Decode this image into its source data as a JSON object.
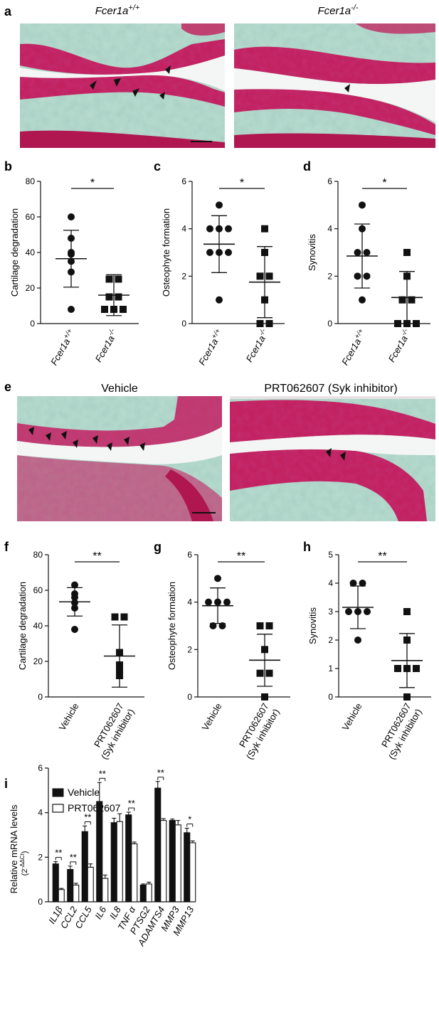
{
  "panels": {
    "a": {
      "letter": "a",
      "left_title_name": "Fcer1a",
      "left_title_sup": "+/+",
      "right_title_name": "Fcer1a",
      "right_title_sup": "-/-"
    },
    "e": {
      "letter": "e",
      "left_title": "Vehicle",
      "right_title": "PRT062607 (Syk inhibitor)"
    }
  },
  "colors": {
    "safranin": "#c21d5a",
    "background_tissue": "#b8dccf",
    "bar_vehicle": "#111111",
    "bar_prt": "#ffffff"
  },
  "chart_data": [
    {
      "id": "b",
      "letter": "b",
      "type": "scatter",
      "categories": [
        {
          "name": "Fcer1a",
          "sup": "+/+"
        },
        {
          "name": "Fcer1a",
          "sup": "-/-"
        }
      ],
      "ylabel": "Cartilage degradation",
      "ylim": [
        0,
        80
      ],
      "yticks": [
        0,
        20,
        40,
        60,
        80
      ],
      "series": [
        {
          "marker": "circle",
          "values": [
            60,
            48,
            40,
            39,
            35,
            29,
            8
          ],
          "mean": 36.5,
          "sd": 16
        },
        {
          "marker": "square",
          "values": [
            25,
            25,
            15,
            15,
            8,
            8,
            8
          ],
          "mean": 16,
          "sd": 11.5
        }
      ],
      "significance": "*"
    },
    {
      "id": "c",
      "letter": "c",
      "type": "scatter",
      "categories": [
        {
          "name": "Fcer1a",
          "sup": "+/+"
        },
        {
          "name": "Fcer1a",
          "sup": "-/-"
        }
      ],
      "ylabel": "Osteophyte formation",
      "ylim": [
        0,
        6
      ],
      "yticks": [
        0,
        2,
        4,
        6
      ],
      "series": [
        {
          "marker": "circle",
          "values": [
            5,
            4,
            4,
            4,
            3,
            3,
            3,
            1
          ],
          "mean": 3.35,
          "sd": 1.2
        },
        {
          "marker": "square",
          "values": [
            4,
            3,
            2,
            2,
            1,
            0,
            0
          ],
          "mean": 1.75,
          "sd": 1.5
        }
      ],
      "significance": "*"
    },
    {
      "id": "d",
      "letter": "d",
      "type": "scatter",
      "categories": [
        {
          "name": "Fcer1a",
          "sup": "+/+"
        },
        {
          "name": "Fcer1a",
          "sup": "-/-"
        }
      ],
      "ylabel": "Synovitis",
      "ylim": [
        0,
        6
      ],
      "yticks": [
        0,
        2,
        4,
        6
      ],
      "series": [
        {
          "marker": "circle",
          "values": [
            5,
            4,
            3,
            3,
            2,
            2,
            1
          ],
          "mean": 2.85,
          "sd": 1.35
        },
        {
          "marker": "square",
          "values": [
            3,
            2,
            1,
            1,
            0,
            0,
            0
          ],
          "mean": 1.1,
          "sd": 1.1
        }
      ],
      "significance": "*"
    },
    {
      "id": "f",
      "letter": "f",
      "type": "scatter",
      "categories": [
        {
          "name": "Vehicle"
        },
        {
          "name": "PRT062607",
          "line2": "(Syk inhibitor)"
        }
      ],
      "ylabel": "Cartilage degradation",
      "ylim": [
        0,
        80
      ],
      "yticks": [
        0,
        20,
        40,
        60,
        80
      ],
      "series": [
        {
          "marker": "circle",
          "values": [
            63,
            58,
            56,
            53,
            50,
            38
          ],
          "mean": 53.5,
          "sd": 8
        },
        {
          "marker": "square",
          "values": [
            45,
            45,
            25,
            18,
            15,
            12
          ],
          "mean": 23,
          "sd": 17.5
        }
      ],
      "significance": "**"
    },
    {
      "id": "g",
      "letter": "g",
      "type": "scatter",
      "categories": [
        {
          "name": "Vehicle"
        },
        {
          "name": "PRT062607",
          "line2": "(Syk inhibitor)"
        }
      ],
      "ylabel": "Osteophyte formation",
      "ylim": [
        0,
        6
      ],
      "yticks": [
        0,
        2,
        4,
        6
      ],
      "series": [
        {
          "marker": "circle",
          "values": [
            5,
            4,
            4,
            4,
            3,
            3
          ],
          "mean": 3.85,
          "sd": 0.75
        },
        {
          "marker": "square",
          "values": [
            3,
            3,
            2,
            1,
            1,
            0
          ],
          "mean": 1.55,
          "sd": 1.1
        }
      ],
      "significance": "**"
    },
    {
      "id": "h",
      "letter": "h",
      "type": "scatter",
      "categories": [
        {
          "name": "Vehicle"
        },
        {
          "name": "PRT062607",
          "line2": "(Syk inhibitor)"
        }
      ],
      "ylabel": "Synovitis",
      "ylim": [
        0,
        5
      ],
      "yticks": [
        0,
        1,
        2,
        3,
        4,
        5
      ],
      "series": [
        {
          "marker": "circle",
          "values": [
            4,
            4,
            3,
            3,
            3,
            2
          ],
          "mean": 3.15,
          "sd": 0.75
        },
        {
          "marker": "square",
          "values": [
            3,
            2,
            1,
            1,
            1,
            0
          ],
          "mean": 1.28,
          "sd": 0.95
        }
      ],
      "significance": "**"
    },
    {
      "id": "i",
      "letter": "i",
      "type": "bar",
      "categories": [
        "IL1β",
        "CCL2",
        "CCL5",
        "IL6",
        "IL8",
        "TNF α",
        "PTSG2",
        "ADAMTS4",
        "MMP3",
        "MMP13"
      ],
      "ylabel": "Relative mRNA levels",
      "ylabel_sub": "(2",
      "ylabel_sup": "-ΔΔCt",
      "ylabel_end": ")",
      "ylim": [
        0,
        6
      ],
      "yticks": [
        0,
        2,
        4,
        6
      ],
      "legend": [
        "Vehicle",
        "PRT062607"
      ],
      "series": [
        {
          "name": "Vehicle",
          "values": [
            1.7,
            1.45,
            3.15,
            4.5,
            3.55,
            3.9,
            0.75,
            5.1,
            3.65,
            3.1
          ],
          "err": [
            0.1,
            0.15,
            0.25,
            0.85,
            0.2,
            0.12,
            0.05,
            0.3,
            0.06,
            0.2
          ]
        },
        {
          "name": "PRT062607",
          "values": [
            0.55,
            0.75,
            1.55,
            1.05,
            3.6,
            2.6,
            0.8,
            3.65,
            3.45,
            2.65
          ],
          "err": [
            0.05,
            0.08,
            0.15,
            0.15,
            0.35,
            0.08,
            0.08,
            0.08,
            0.2,
            0.08
          ]
        }
      ],
      "significance": [
        "**",
        "**",
        "**",
        "**",
        "",
        "**",
        "",
        "**",
        "",
        "*"
      ]
    }
  ]
}
